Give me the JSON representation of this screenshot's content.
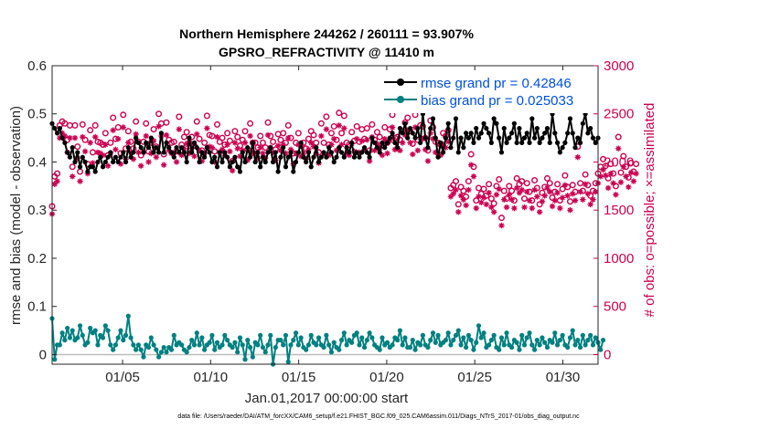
{
  "chart_data": {
    "type": "line",
    "title": "Northern Hemisphere 244262 / 260111 = 93.907%",
    "subtitle": "GPSRO_REFRACTIVITY @ 11410 m",
    "xlabel": "Jan.01,2017 00:00:00 start",
    "ylabel": "rmse and bias (model - observation)",
    "y2label": "# of obs: o=possible; ×=assimilated",
    "footnote": "data file: /Users/raeder/DAI/ATM_forcXX/CAM6_setup/f.e21.FHIST_BGC.f09_025.CAM6assim.011/Diags_NTrS_2017-01/obs_diag_output.nc",
    "xlim": [
      1,
      32
    ],
    "ylim": [
      -0.02,
      0.6
    ],
    "y2lim": [
      -100,
      3000
    ],
    "x_ticks": [
      5,
      10,
      15,
      20,
      25,
      30
    ],
    "x_tick_labels": [
      "01/05",
      "01/10",
      "01/15",
      "01/20",
      "01/25",
      "01/30"
    ],
    "y_ticks": [
      "0",
      "0.1",
      "0.2",
      "0.3",
      "0.4",
      "0.5",
      "0.6"
    ],
    "y2_ticks": [
      "0",
      "500",
      "1000",
      "1500",
      "2000",
      "2500",
      "3000"
    ],
    "colors": {
      "rmse": "#000000",
      "bias": "#008080",
      "possible": "#cc0050",
      "assimilated": "#cc0050",
      "zero_line": "#bdbdbd"
    },
    "legend": {
      "position": "top-right",
      "entries": [
        "rmse grand pr = 0.42846",
        "bias grand pr = 0.025033"
      ]
    },
    "series": [
      {
        "name": "rmse",
        "values": [
          0.48,
          0.47,
          0.46,
          0.47,
          0.45,
          0.44,
          0.42,
          0.41,
          0.43,
          0.4,
          0.42,
          0.39,
          0.41,
          0.4,
          0.38,
          0.39,
          0.39,
          0.38,
          0.4,
          0.41,
          0.39,
          0.4,
          0.41,
          0.42,
          0.4,
          0.41,
          0.4,
          0.41,
          0.42,
          0.4,
          0.43,
          0.41,
          0.42,
          0.45,
          0.44,
          0.43,
          0.42,
          0.44,
          0.43,
          0.45,
          0.42,
          0.43,
          0.42,
          0.46,
          0.42,
          0.44,
          0.43,
          0.42,
          0.41,
          0.43,
          0.42,
          0.43,
          0.42,
          0.4,
          0.45,
          0.42,
          0.44,
          0.43,
          0.4,
          0.42,
          0.41,
          0.43,
          0.42,
          0.4,
          0.41,
          0.39,
          0.42,
          0.4,
          0.42,
          0.41,
          0.39,
          0.4,
          0.41,
          0.39,
          0.38,
          0.42,
          0.4,
          0.43,
          0.41,
          0.44,
          0.4,
          0.42,
          0.39,
          0.41,
          0.4,
          0.42,
          0.43,
          0.4,
          0.42,
          0.38,
          0.41,
          0.43,
          0.39,
          0.41,
          0.42,
          0.38,
          0.4,
          0.42,
          0.44,
          0.41,
          0.4,
          0.42,
          0.39,
          0.41,
          0.43,
          0.4,
          0.41,
          0.42,
          0.41,
          0.43,
          0.42,
          0.4,
          0.41,
          0.43,
          0.42,
          0.41,
          0.43,
          0.42,
          0.44,
          0.41,
          0.42,
          0.41,
          0.42,
          0.43,
          0.42,
          0.41,
          0.45,
          0.44,
          0.43,
          0.42,
          0.44,
          0.43,
          0.44,
          0.45,
          0.46,
          0.44,
          0.43,
          0.47,
          0.46,
          0.48,
          0.45,
          0.47,
          0.46,
          0.45,
          0.47,
          0.44,
          0.5,
          0.45,
          0.43,
          0.47,
          0.49,
          0.45,
          0.41,
          0.44,
          0.42,
          0.45,
          0.48,
          0.43,
          0.45,
          0.49,
          0.42,
          0.45,
          0.43,
          0.46,
          0.45,
          0.46,
          0.44,
          0.47,
          0.45,
          0.46,
          0.48,
          0.47,
          0.46,
          0.44,
          0.49,
          0.48,
          0.45,
          0.42,
          0.47,
          0.44,
          0.45,
          0.46,
          0.48,
          0.44,
          0.47,
          0.44,
          0.45,
          0.46,
          0.44,
          0.49,
          0.45,
          0.47,
          0.44,
          0.45,
          0.46,
          0.47,
          0.44,
          0.5,
          0.46,
          0.44,
          0.42,
          0.43,
          0.44,
          0.46,
          0.49,
          0.46,
          0.43,
          0.45,
          0.44,
          0.48,
          0.5,
          0.46,
          0.47,
          0.45,
          0.44,
          0.45
        ]
      },
      {
        "name": "bias",
        "values": [
          0.075,
          -0.01,
          0.02,
          0.02,
          0.045,
          0.03,
          0.055,
          0.035,
          0.05,
          0.03,
          0.035,
          0.06,
          0.04,
          0.02,
          0.025,
          0.055,
          0.045,
          0.05,
          0.02,
          0.04,
          0.035,
          0.06,
          0.05,
          0.02,
          0.01,
          0.02,
          0.035,
          0.05,
          0.03,
          0.04,
          0.08,
          0.035,
          0.02,
          0.01,
          0.02,
          0.01,
          -0.005,
          0.02,
          0.015,
          0.035,
          0.02,
          0.01,
          -0.005,
          0.005,
          0.015,
          0.005,
          0.015,
          0.01,
          0.04,
          0.02,
          0.025,
          0.02,
          0.01,
          0.005,
          0.015,
          0.03,
          0.02,
          0.045,
          0.02,
          0.035,
          0.01,
          0.02,
          0.025,
          0.04,
          0.01,
          0.025,
          0.015,
          0.02,
          0.04,
          0.03,
          0.02,
          0.015,
          0.025,
          0.005,
          0.035,
          0.02,
          -0.01,
          0.03,
          0.015,
          -0.005,
          0.025,
          0.02,
          0.04,
          0.015,
          0.005,
          0.02,
          0.04,
          -0.02,
          0.015,
          0.03,
          0.03,
          0.02,
          0.04,
          -0.015,
          0.02,
          0.03,
          0.045,
          0.02,
          0.035,
          0.015,
          0.01,
          0.02,
          0.04,
          0.025,
          0.02,
          0.035,
          0.02,
          0.015,
          0.04,
          0.02,
          0.005,
          0.025,
          0.015,
          0.01,
          0.03,
          0.045,
          0.02,
          0.03,
          0.025,
          0.04,
          0.045,
          0.02,
          0.035,
          0.015,
          0.03,
          0.045,
          0.035,
          0.02,
          0.015,
          0.01,
          0.035,
          0.02,
          0.025,
          0.015,
          0.02,
          0.035,
          0.03,
          0.05,
          0.02,
          0.035,
          0.015,
          0.015,
          0.03,
          0.01,
          0.025,
          0.02,
          0.04,
          0.02,
          0.015,
          0.03,
          0.045,
          0.025,
          0.04,
          0.02,
          0.025,
          0.03,
          0.045,
          0.02,
          0.03,
          0.04,
          0.05,
          0.02,
          0.035,
          0.015,
          0.04,
          0.03,
          0.01,
          0.025,
          0.06,
          0.035,
          0.045,
          0.015,
          0.02,
          0.03,
          0.04,
          0.015,
          0.01,
          0.035,
          0.02,
          0.045,
          0.02,
          0.015,
          0.03,
          0.025,
          0.01,
          0.04,
          0.02,
          0.035,
          0.045,
          0.02,
          0.01,
          0.03,
          0.02,
          0.035,
          0.025,
          0.015,
          0.03,
          0.025,
          0.045,
          0.02,
          0.03,
          0.04,
          0.02,
          0.015,
          0.035,
          0.05,
          0.02,
          0.03,
          0.015,
          0.04,
          0.02,
          0.03,
          0.04,
          0.02,
          0.035,
          0.025,
          0.01,
          0.03
        ]
      },
      {
        "name": "obs_possible",
        "values": [
          1540,
          1850,
          1880,
          2380,
          2420,
          2400,
          2230,
          2380,
          1950,
          2380,
          2160,
          1900,
          2390,
          2230,
          1980,
          2330,
          2100,
          2380,
          2210,
          2200,
          2180,
          2300,
          2070,
          2200,
          2460,
          2240,
          2360,
          2090,
          2490,
          2140,
          2320,
          2210,
          2140,
          2420,
          2210,
          2070,
          2210,
          2400,
          2110,
          2200,
          2340,
          2160,
          2500,
          2400,
          2080,
          2410,
          2230,
          2200,
          2210,
          2110,
          2470,
          2180,
          2260,
          2310,
          2200,
          2260,
          2170,
          2420,
          2240,
          2120,
          2200,
          2480,
          2280,
          2270,
          2110,
          2390,
          2210,
          2250,
          2180,
          2300,
          2220,
          2010,
          2320,
          2260,
          2170,
          2230,
          2320,
          2130,
          2400,
          2200,
          2200,
          2150,
          2270,
          2200,
          2150,
          2410,
          2270,
          2210,
          2130,
          2290,
          2230,
          2300,
          2200,
          2380,
          2250,
          2090,
          2200,
          2300,
          2170,
          2200,
          2140,
          2240,
          2320,
          2280,
          2200,
          2100,
          2400,
          2200,
          2470,
          2180,
          2300,
          2370,
          2230,
          2510,
          2300,
          2480,
          2200,
          2180,
          2310,
          2220,
          2370,
          2210,
          2340,
          2240,
          2350,
          2120,
          2390,
          2230,
          2310,
          2260,
          2180,
          2360,
          2200,
          2340,
          2490,
          2250,
          2260,
          2230,
          2320,
          2410,
          2460,
          2320,
          2190,
          2490,
          2230,
          2380,
          2370,
          2250,
          2120,
          2430,
          2360,
          2210,
          2200,
          2180,
          2300,
          2270,
          2330,
          1730,
          1760,
          1800,
          1560,
          1740,
          1700,
          1640,
          1800,
          2080,
          1950,
          1600,
          1730,
          1670,
          1720,
          1650,
          1770,
          1620,
          1570,
          1750,
          1820,
          1420,
          1700,
          1620,
          1750,
          1700,
          1600,
          1830,
          1770,
          1800,
          1620,
          1780,
          1690,
          1600,
          1810,
          1730,
          1560,
          1680,
          1740,
          1830,
          1780,
          1630,
          1690,
          1770,
          1600,
          1720,
          1860,
          1740,
          1590,
          1760,
          1690,
          2160,
          1780,
          1700,
          1870,
          1760,
          1650,
          1700,
          1780,
          1880,
          1950,
          2030,
          1960,
          1830,
          1980,
          1880,
          1750,
          2260,
          1890,
          2060,
          1950,
          1840,
          1990,
          1900,
          1980
        ]
      },
      {
        "name": "obs_assimilated",
        "values": [
          1460,
          1770,
          1800,
          2250,
          2300,
          2270,
          2100,
          2250,
          1850,
          2250,
          2040,
          1800,
          2260,
          2110,
          1880,
          2200,
          1990,
          2260,
          2100,
          2090,
          2070,
          2180,
          1960,
          2090,
          2330,
          2130,
          2240,
          1980,
          2360,
          2030,
          2200,
          2100,
          2030,
          2290,
          2100,
          1960,
          2100,
          2270,
          2000,
          2090,
          2220,
          2050,
          2370,
          2270,
          1970,
          2280,
          2120,
          2090,
          2100,
          2000,
          2340,
          2070,
          2140,
          2190,
          2090,
          2140,
          2060,
          2290,
          2120,
          2010,
          2090,
          2350,
          2160,
          2150,
          2000,
          2260,
          2100,
          2130,
          2070,
          2180,
          2110,
          1910,
          2200,
          2140,
          2060,
          2120,
          2200,
          2020,
          2270,
          2090,
          2090,
          2040,
          2150,
          2090,
          2040,
          2280,
          2150,
          2100,
          2020,
          2170,
          2120,
          2180,
          2090,
          2250,
          2130,
          1980,
          2090,
          2180,
          2060,
          2090,
          2030,
          2130,
          2200,
          2160,
          2090,
          1990,
          2270,
          2090,
          2340,
          2070,
          2180,
          2240,
          2120,
          2380,
          2180,
          2350,
          2090,
          2070,
          2190,
          2110,
          2240,
          2100,
          2220,
          2130,
          2230,
          2010,
          2260,
          2120,
          2190,
          2140,
          2070,
          2240,
          2090,
          2220,
          2360,
          2130,
          2140,
          2120,
          2200,
          2280,
          2330,
          2200,
          2080,
          2360,
          2120,
          2250,
          2240,
          2130,
          2010,
          2300,
          2240,
          2100,
          2090,
          2070,
          2180,
          2150,
          2210,
          1640,
          1670,
          1710,
          1480,
          1650,
          1610,
          1550,
          1710,
          1970,
          1850,
          1520,
          1640,
          1580,
          1630,
          1560,
          1680,
          1530,
          1480,
          1660,
          1720,
          1340,
          1610,
          1530,
          1660,
          1610,
          1520,
          1730,
          1680,
          1710,
          1530,
          1690,
          1600,
          1520,
          1710,
          1640,
          1480,
          1590,
          1650,
          1730,
          1690,
          1540,
          1600,
          1680,
          1520,
          1630,
          1760,
          1650,
          1500,
          1670,
          1600,
          2050,
          1690,
          1610,
          1770,
          1670,
          1560,
          1610,
          1690,
          1780,
          1850,
          1920,
          1860,
          1730,
          1880,
          1780,
          1660,
          2140,
          1790,
          1950,
          1850,
          1740,
          1890,
          1800,
          1880
        ]
      }
    ]
  }
}
